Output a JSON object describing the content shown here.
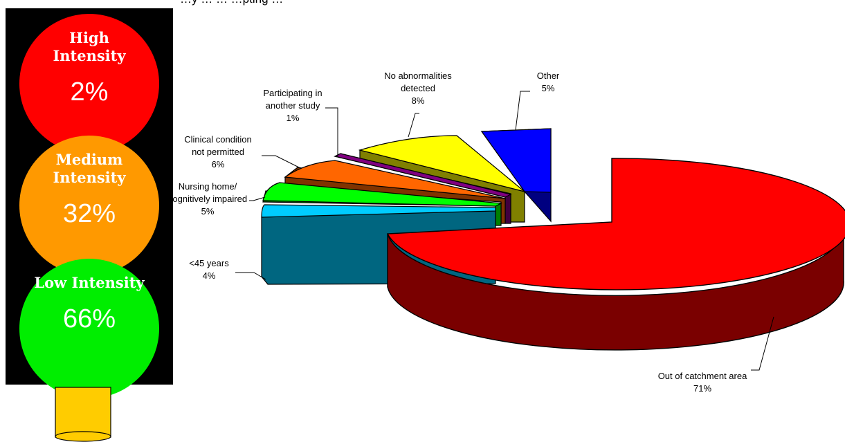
{
  "header_partial": "…y … … …pting …",
  "traffic_light": {
    "lights": [
      {
        "label": "High Intensity",
        "percent": "2%",
        "color": "#ff0000"
      },
      {
        "label": "Medium Intensity",
        "percent": "32%",
        "color": "#ff9900"
      },
      {
        "label": "Low Intensity",
        "percent": "66%",
        "color": "#00ee00"
      }
    ]
  },
  "chart_data": {
    "type": "pie",
    "style": "3d-exploded",
    "title": "",
    "slices": [
      {
        "label": "Out of catchment area",
        "value": 71,
        "display": "71%",
        "color": "#ff0000",
        "side_color": "#7a0000"
      },
      {
        "label": "Other",
        "value": 5,
        "display": "5%",
        "color": "#0000ff",
        "side_color": "#000080"
      },
      {
        "label": "No abnormalities detected",
        "value": 8,
        "display": "8%",
        "color": "#ffff00",
        "side_color": "#808000"
      },
      {
        "label": "Participating in another study",
        "value": 1,
        "display": "1%",
        "color": "#800080",
        "side_color": "#400040"
      },
      {
        "label": "Clinical condition not permitted",
        "value": 6,
        "display": "6%",
        "color": "#ff6600",
        "side_color": "#803300"
      },
      {
        "label": "Nursing home/ cognitively impaired",
        "value": 5,
        "display": "5%",
        "color": "#00ff00",
        "side_color": "#008000"
      },
      {
        "label": "<45 years",
        "value": 4,
        "display": "4%",
        "color": "#00ccff",
        "side_color": "#006680"
      }
    ],
    "labels": {
      "catchment": [
        "Out of catchment area",
        "71%"
      ],
      "other": [
        "Other",
        "5%"
      ],
      "noabn": [
        "No abnormalities",
        "detected",
        "8%"
      ],
      "study": [
        "Participating in",
        "another study",
        "1%"
      ],
      "clinical": [
        "Clinical condition",
        "not permitted",
        "6%"
      ],
      "nursing": [
        "Nursing home/",
        "cognitively impaired",
        "5%"
      ],
      "age": [
        "<45 years",
        "4%"
      ]
    }
  },
  "cylinder": {
    "color": "#ffcc00"
  }
}
